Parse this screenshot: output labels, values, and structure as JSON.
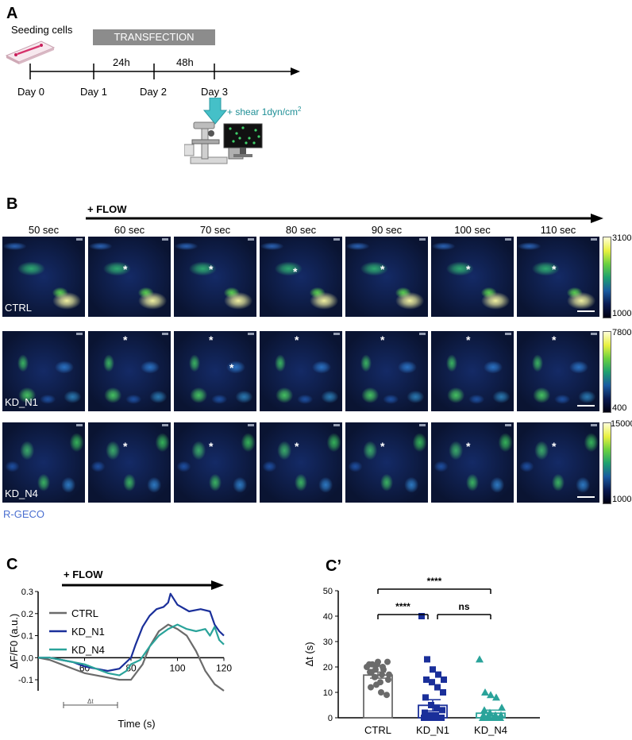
{
  "panelA": {
    "label": "A",
    "seeding": "Seeding cells",
    "transfection": "TRANSFECTION",
    "intervals": [
      "24h",
      "48h"
    ],
    "days": [
      "Day 0",
      "Day 1",
      "Day 2",
      "Day 3"
    ],
    "shear_text": "+ shear 1dyn/cm",
    "shear_sup": "2"
  },
  "panelB": {
    "label": "B",
    "flow": "+ FLOW",
    "times": [
      "50 sec",
      "60 sec",
      "70 sec",
      "80 sec",
      "90 sec",
      "100 sec",
      "110 sec"
    ],
    "rows": [
      {
        "condition": "CTRL",
        "cbar_max": "3100",
        "cbar_min": "1000"
      },
      {
        "condition": "KD_N1",
        "cbar_max": "7800",
        "cbar_min": "400"
      },
      {
        "condition": "KD_N4",
        "cbar_max": "15000",
        "cbar_min": "1000"
      }
    ],
    "indicator": "R-GECO",
    "indicator_color": "#4a6fd0"
  },
  "panelC": {
    "label": "C",
    "flow": "+ FLOW",
    "delta_label": "Δt",
    "chart_data": {
      "type": "line",
      "xlabel": "Time (s)",
      "ylabel": "ΔF/F0 (a.u.)",
      "xlim": [
        40,
        120
      ],
      "ylim": [
        -0.15,
        0.3
      ],
      "x_ticks": [
        "60",
        "80",
        "100",
        "120"
      ],
      "y_ticks": [
        "0.3",
        "0.2",
        "0.1",
        "0.0",
        "-0.1"
      ],
      "series": [
        {
          "name": "CTRL",
          "color": "#6b6b6b",
          "x": [
            40,
            45,
            50,
            55,
            60,
            65,
            70,
            75,
            80,
            85,
            88,
            92,
            96,
            100,
            104,
            108,
            112,
            116,
            120
          ],
          "y": [
            0.0,
            -0.01,
            -0.03,
            -0.05,
            -0.07,
            -0.08,
            -0.09,
            -0.1,
            -0.1,
            -0.03,
            0.05,
            0.12,
            0.15,
            0.13,
            0.1,
            0.03,
            -0.06,
            -0.12,
            -0.15
          ]
        },
        {
          "name": "KD_N1",
          "color": "#1a2f9a",
          "x": [
            40,
            45,
            50,
            55,
            60,
            65,
            70,
            75,
            78,
            80,
            82,
            85,
            88,
            91,
            94,
            96,
            97,
            100,
            105,
            110,
            114,
            116,
            118,
            120
          ],
          "y": [
            0.0,
            0.0,
            -0.01,
            -0.02,
            -0.04,
            -0.05,
            -0.06,
            -0.05,
            -0.02,
            0.0,
            0.06,
            0.14,
            0.19,
            0.22,
            0.23,
            0.25,
            0.29,
            0.24,
            0.21,
            0.22,
            0.21,
            0.15,
            0.12,
            0.1
          ]
        },
        {
          "name": "KD_N4",
          "color": "#2aa39a",
          "x": [
            40,
            45,
            50,
            55,
            60,
            65,
            70,
            75,
            78,
            80,
            84,
            88,
            92,
            96,
            100,
            104,
            108,
            112,
            114,
            116,
            118,
            120
          ],
          "y": [
            0.0,
            0.0,
            -0.01,
            -0.02,
            -0.03,
            -0.05,
            -0.07,
            -0.08,
            -0.06,
            -0.03,
            -0.01,
            0.05,
            0.1,
            0.13,
            0.15,
            0.13,
            0.12,
            0.13,
            0.1,
            0.14,
            0.08,
            0.06
          ]
        }
      ]
    }
  },
  "panelC2": {
    "label": "C’",
    "sig_labels": [
      "****",
      "****",
      "ns"
    ],
    "chart_data": {
      "type": "bar",
      "categories": [
        "CTRL",
        "KD_N1",
        "KD_N4"
      ],
      "values": [
        16.8,
        4.9,
        1.8
      ],
      "sem": [
        1.2,
        2.2,
        1.2
      ],
      "ylabel": "Δt (s)",
      "ylim": [
        0,
        50
      ],
      "y_ticks": [
        "50",
        "40",
        "30",
        "20",
        "10",
        "0"
      ],
      "colors": [
        "#6b6b6b",
        "#1a2f9a",
        "#2aa39a"
      ],
      "points": [
        [
          20,
          21,
          22,
          19,
          17,
          18,
          21,
          20,
          15,
          12,
          13,
          17,
          22,
          18,
          19,
          10,
          9,
          21,
          16,
          14
        ],
        [
          40,
          23,
          19,
          17,
          15,
          15,
          14,
          12,
          10,
          8,
          5,
          4,
          3,
          2,
          1,
          1,
          0,
          0,
          0,
          0
        ],
        [
          23,
          10,
          9,
          8,
          4,
          3,
          2,
          1,
          1,
          1,
          0,
          0,
          0,
          0,
          0,
          0
        ]
      ]
    }
  }
}
